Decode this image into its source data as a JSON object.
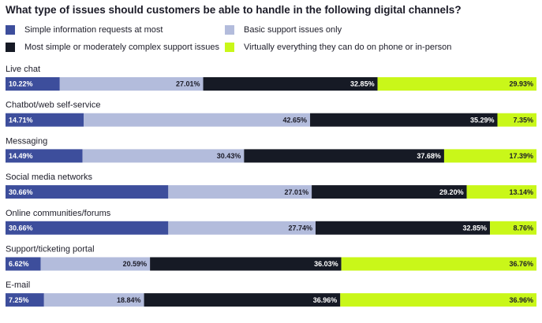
{
  "chart_data": {
    "type": "bar",
    "orientation": "horizontal",
    "stacked": true,
    "title": "What type of issues should customers be able to handle in the following digital channels?",
    "categories": [
      "Live chat",
      "Chatbot/web self-service",
      "Messaging",
      "Social media networks",
      "Online communities/forums",
      "Support/ticketing portal",
      "E-mail"
    ],
    "series": [
      {
        "name": "Simple information requests at most",
        "color": "#3d4e9c",
        "values": [
          10.22,
          14.71,
          14.49,
          30.66,
          30.66,
          6.62,
          7.25
        ],
        "labels": [
          "10.22%",
          "14.71%",
          "14.49%",
          "30.66%",
          "30.66%",
          "6.62%",
          "7.25%"
        ]
      },
      {
        "name": "Basic support issues only",
        "color": "#b3bcdc",
        "values": [
          27.01,
          42.65,
          30.43,
          27.01,
          27.74,
          20.59,
          18.84
        ],
        "labels": [
          "27.01%",
          "42.65%",
          "30.43%",
          "27.01%",
          "27.74%",
          "20.59%",
          "18.84%"
        ]
      },
      {
        "name": "Most simple or moderately complex support issues",
        "color": "#161a25",
        "values": [
          32.85,
          35.29,
          37.68,
          29.2,
          32.85,
          36.03,
          36.96
        ],
        "labels": [
          "32.85%",
          "35.29%",
          "37.68%",
          "29.20%",
          "32.85%",
          "36.03%",
          "36.96%"
        ]
      },
      {
        "name": "Virtually everything they can do on phone or in-person",
        "color": "#c9f719",
        "values": [
          29.93,
          7.35,
          17.39,
          13.14,
          8.76,
          36.76,
          36.96
        ],
        "labels": [
          "29.93%",
          "7.35%",
          "17.39%",
          "13.14%",
          "8.76%",
          "36.76%",
          "36.96%"
        ]
      }
    ],
    "value_label_colors": [
      "#ffffff",
      "#1c1c28",
      "#ffffff",
      "#1c1c28"
    ],
    "legend_position": "top",
    "grid": false,
    "xlim": [
      0,
      100
    ]
  }
}
